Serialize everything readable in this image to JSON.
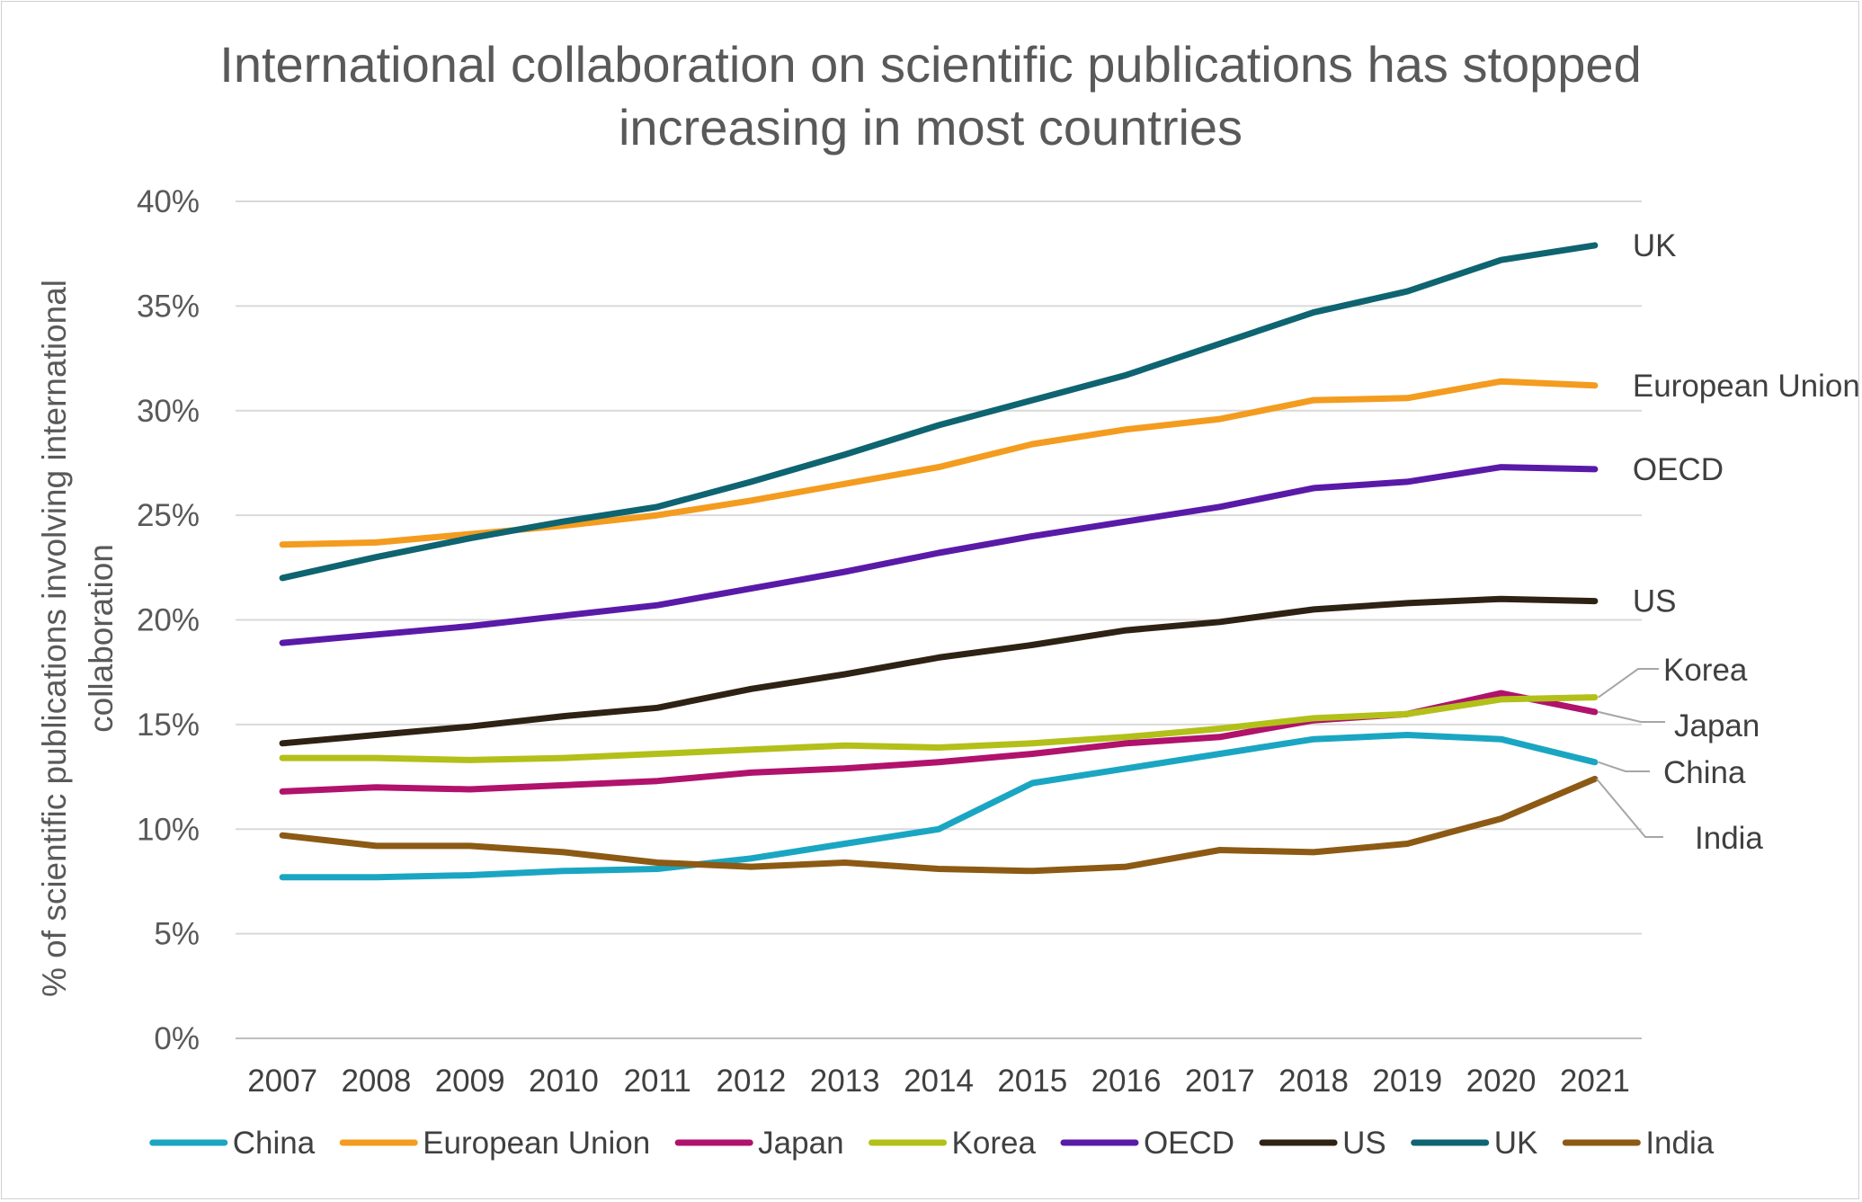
{
  "chart_data": {
    "type": "line",
    "title_lines": [
      "International collaboration on scientific publications has stopped",
      "increasing in most countries"
    ],
    "ylabel_lines": [
      "% of scientific publications involving international",
      "collaboration"
    ],
    "xlabel": "",
    "x": [
      "2007",
      "2008",
      "2009",
      "2010",
      "2011",
      "2012",
      "2013",
      "2014",
      "2015",
      "2016",
      "2017",
      "2018",
      "2019",
      "2020",
      "2021"
    ],
    "ylim": [
      0,
      40
    ],
    "y_ticks": [
      "0%",
      "5%",
      "10%",
      "15%",
      "20%",
      "25%",
      "30%",
      "35%",
      "40%"
    ],
    "grid": "horizontal",
    "legend_position": "bottom",
    "series": [
      {
        "name": "China",
        "color": "#1aa6c2",
        "values": [
          7.7,
          7.7,
          7.8,
          8.0,
          8.1,
          8.6,
          9.3,
          10.0,
          12.2,
          12.9,
          13.6,
          14.3,
          14.5,
          14.3,
          13.2
        ]
      },
      {
        "name": "European Union",
        "color": "#f39c1f",
        "values": [
          23.6,
          23.7,
          24.1,
          24.5,
          25.0,
          25.7,
          26.5,
          27.3,
          28.4,
          29.1,
          29.6,
          30.5,
          30.6,
          31.4,
          31.2
        ]
      },
      {
        "name": "Japan",
        "color": "#b0126c",
        "values": [
          11.8,
          12.0,
          11.9,
          12.1,
          12.3,
          12.7,
          12.9,
          13.2,
          13.6,
          14.1,
          14.4,
          15.2,
          15.5,
          16.5,
          15.6
        ]
      },
      {
        "name": "Korea",
        "color": "#b2c019",
        "values": [
          13.4,
          13.4,
          13.3,
          13.4,
          13.6,
          13.8,
          14.0,
          13.9,
          14.1,
          14.4,
          14.8,
          15.3,
          15.5,
          16.2,
          16.3
        ]
      },
      {
        "name": "OECD",
        "color": "#5a1aa8",
        "values": [
          18.9,
          19.3,
          19.7,
          20.2,
          20.7,
          21.5,
          22.3,
          23.2,
          24.0,
          24.7,
          25.4,
          26.3,
          26.6,
          27.3,
          27.2
        ]
      },
      {
        "name": "US",
        "color": "#2e2215",
        "values": [
          14.1,
          14.5,
          14.9,
          15.4,
          15.8,
          16.7,
          17.4,
          18.2,
          18.8,
          19.5,
          19.9,
          20.5,
          20.8,
          21.0,
          20.9
        ]
      },
      {
        "name": "UK",
        "color": "#0e6470",
        "values": [
          22.0,
          23.0,
          23.9,
          24.7,
          25.4,
          26.6,
          27.9,
          29.3,
          30.5,
          31.7,
          33.2,
          34.7,
          35.7,
          37.2,
          37.9
        ]
      },
      {
        "name": "India",
        "color": "#8c5a14",
        "values": [
          9.7,
          9.2,
          9.2,
          8.9,
          8.4,
          8.2,
          8.4,
          8.1,
          8.0,
          8.2,
          9.0,
          8.9,
          9.3,
          10.5,
          12.4
        ]
      }
    ],
    "end_labels": [
      {
        "series": "UK",
        "text": "UK",
        "leader": false
      },
      {
        "series": "European Union",
        "text": "European Union",
        "leader": false
      },
      {
        "series": "OECD",
        "text": "OECD",
        "leader": false
      },
      {
        "series": "US",
        "text": "US",
        "leader": false
      },
      {
        "series": "Korea",
        "text": "Korea",
        "leader": true
      },
      {
        "series": "Japan",
        "text": "Japan",
        "leader": true
      },
      {
        "series": "China",
        "text": "China",
        "leader": true
      },
      {
        "series": "India",
        "text": "India",
        "leader": true
      }
    ],
    "legend_order": [
      "China",
      "European Union",
      "Japan",
      "Korea",
      "OECD",
      "US",
      "UK",
      "India"
    ]
  }
}
